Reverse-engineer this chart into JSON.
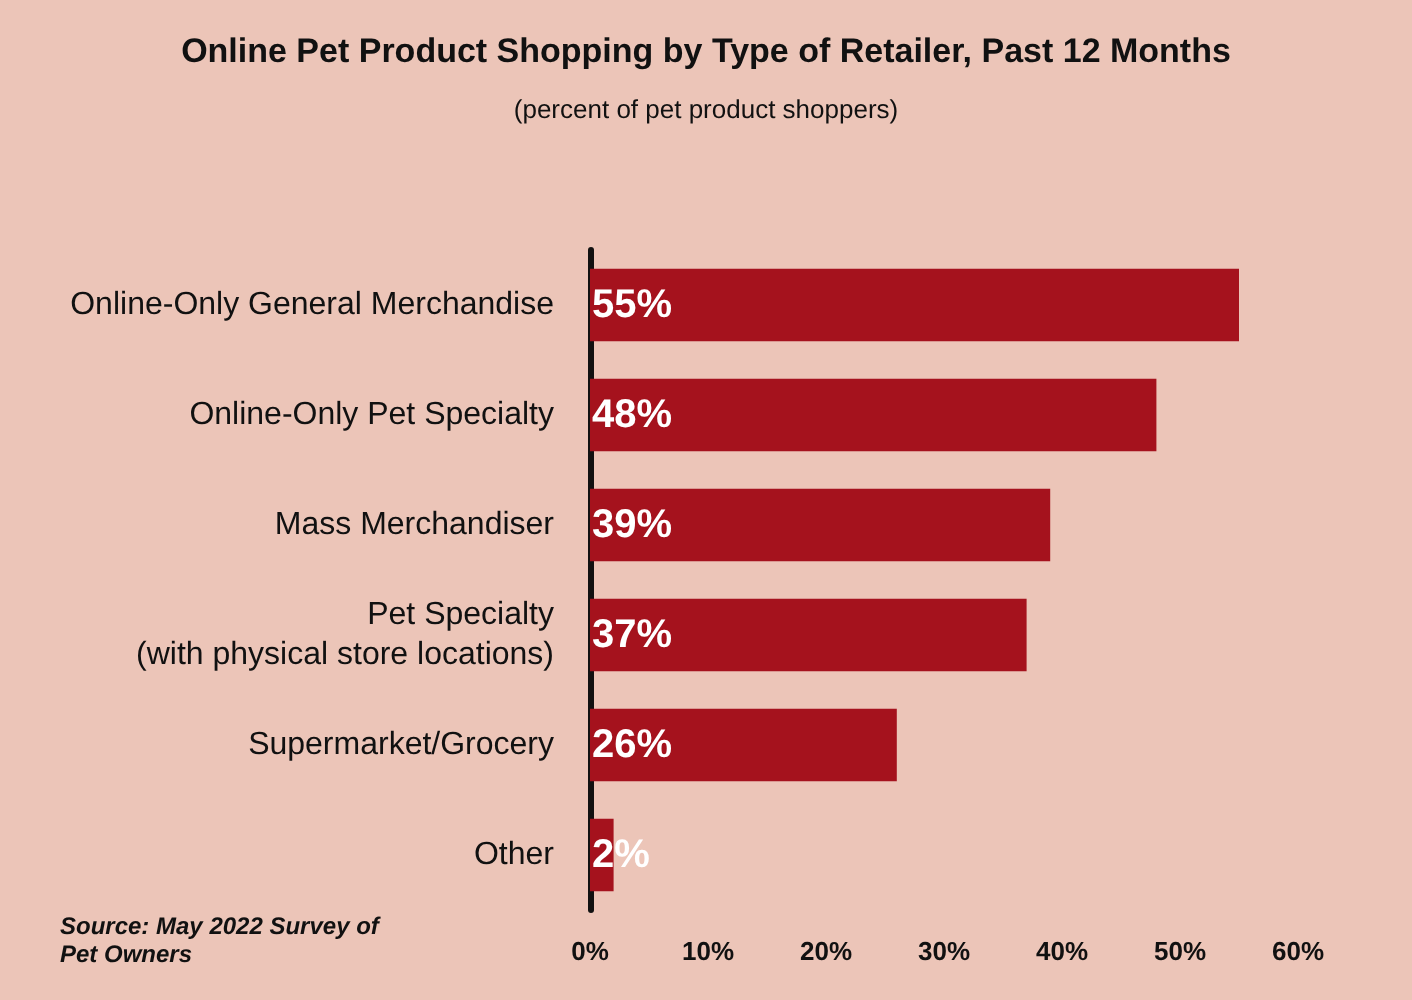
{
  "chart_data": {
    "type": "bar",
    "orientation": "horizontal",
    "title": "Online Pet Product Shopping by Type of Retailer, Past 12 Months",
    "subtitle": "(percent of pet product shoppers)",
    "categories": [
      "Online-Only General Merchandise",
      "Online-Only Pet Specialty",
      "Mass Merchandiser",
      "Pet Specialty\n(with physical store locations)",
      "Supermarket/Grocery",
      "Other"
    ],
    "values": [
      55,
      48,
      39,
      37,
      26,
      2
    ],
    "value_labels": [
      "55%",
      "48%",
      "39%",
      "37%",
      "26%",
      "2%"
    ],
    "color": "#a5121d",
    "xlim": [
      0,
      60
    ],
    "xticks": [
      {
        "value": 0,
        "label": "0%"
      },
      {
        "value": 10,
        "label": "10%"
      },
      {
        "value": 20,
        "label": "20%"
      },
      {
        "value": 30,
        "label": "30%"
      },
      {
        "value": 40,
        "label": "40%"
      },
      {
        "value": 50,
        "label": "50%"
      },
      {
        "value": 60,
        "label": "60%"
      }
    ],
    "grid": false,
    "annotations": [
      "Source: May 2022 Survey of Pet Owners"
    ]
  }
}
